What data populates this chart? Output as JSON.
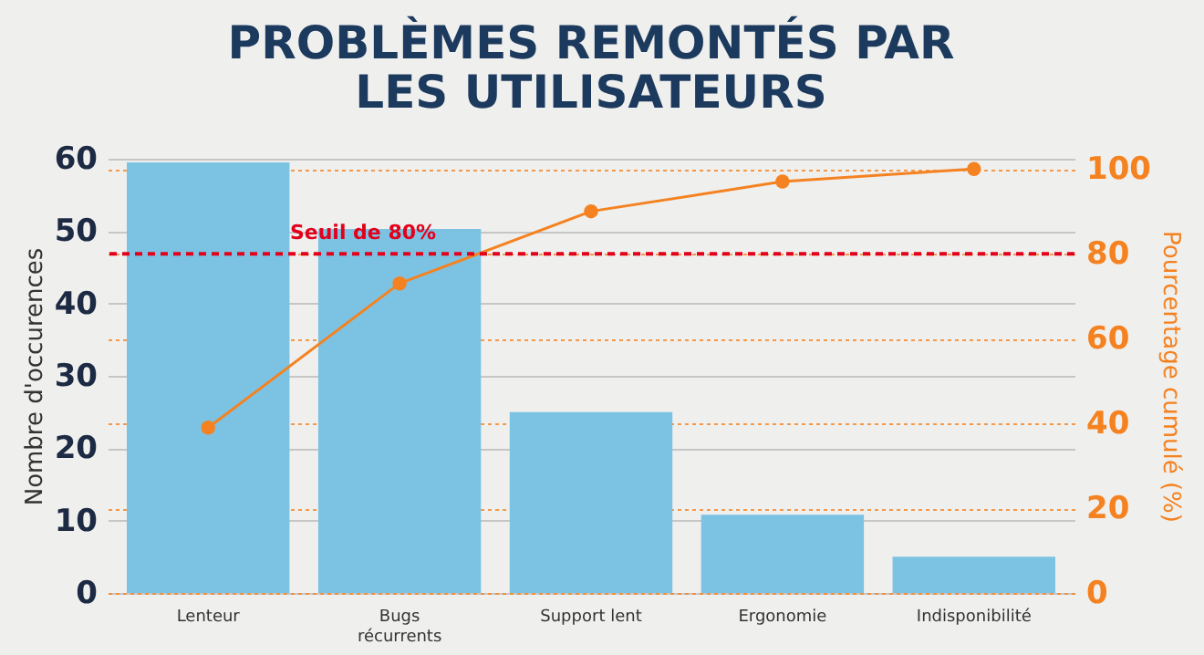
{
  "chart_data": {
    "type": "bar",
    "title": "PROBLÈMES REMONTÉS PAR LES UTILISATEURS",
    "categories": [
      "Lenteur",
      "Bugs récurrents",
      "Support lent",
      "Ergonomie",
      "Indisponibilité"
    ],
    "ylabel": "Nombre d'occurences",
    "y2label": "Pourcentage cumulé (%)",
    "ylim": [
      0,
      60
    ],
    "yticks": [
      0,
      10,
      20,
      30,
      40,
      50,
      60
    ],
    "y2lim": [
      0,
      102.4
    ],
    "y2ticks": [
      0,
      20,
      40,
      60,
      80,
      100
    ],
    "grid": true,
    "marker": "circle",
    "line_style": "solid",
    "series": [
      {
        "color": "#7cc3e3",
        "values": [
          59.5,
          50.3,
          25,
          10.8,
          5
        ]
      },
      {
        "type": "line",
        "axis": "y2",
        "color": "#f58220",
        "values": [
          39,
          73,
          90,
          97,
          100
        ]
      }
    ],
    "ref_lines": [
      {
        "axis": "y2",
        "value": 80,
        "label": "Seuil de 80%",
        "color": "#e3001b",
        "line_style": "dashed"
      }
    ]
  }
}
